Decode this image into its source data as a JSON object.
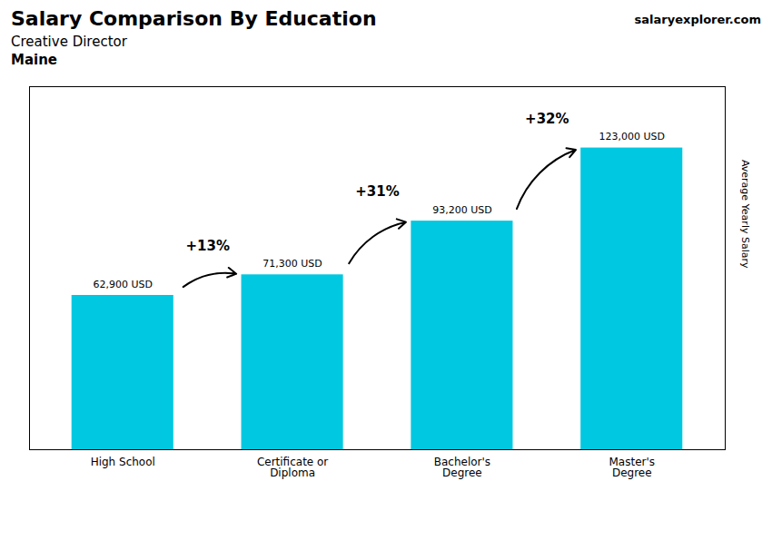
{
  "chart_data": {
    "type": "bar",
    "title": "Salary Comparison By Education",
    "subtitle": "Creative Director",
    "ylabel": "Average Yearly Salary",
    "categories": [
      "High School",
      "Certificate or\nDiploma",
      "Bachelor's\nDegree",
      "Master's\nDegree"
    ],
    "values": [
      62900,
      71300,
      93200,
      123000
    ],
    "value_labels": [
      "62,900 USD",
      "71,300 USD",
      "93,200 USD",
      "123,000 USD"
    ],
    "data_labels": true,
    "color": "#00c8e0",
    "ylim": [
      0,
      148000
    ],
    "grid": false,
    "tick_labels": "x",
    "annotations": [
      {
        "text": "Maine"
      },
      {
        "text": "salaryexplorer.com"
      },
      {
        "text": "+13%",
        "from": "High School",
        "to": "Certificate or\nDiploma"
      },
      {
        "text": "+31%",
        "from": "Certificate or\nDiploma",
        "to": "Bachelor's\nDegree"
      },
      {
        "text": "+32%",
        "from": "Bachelor's\nDegree",
        "to": "Master's\nDegree"
      }
    ]
  }
}
